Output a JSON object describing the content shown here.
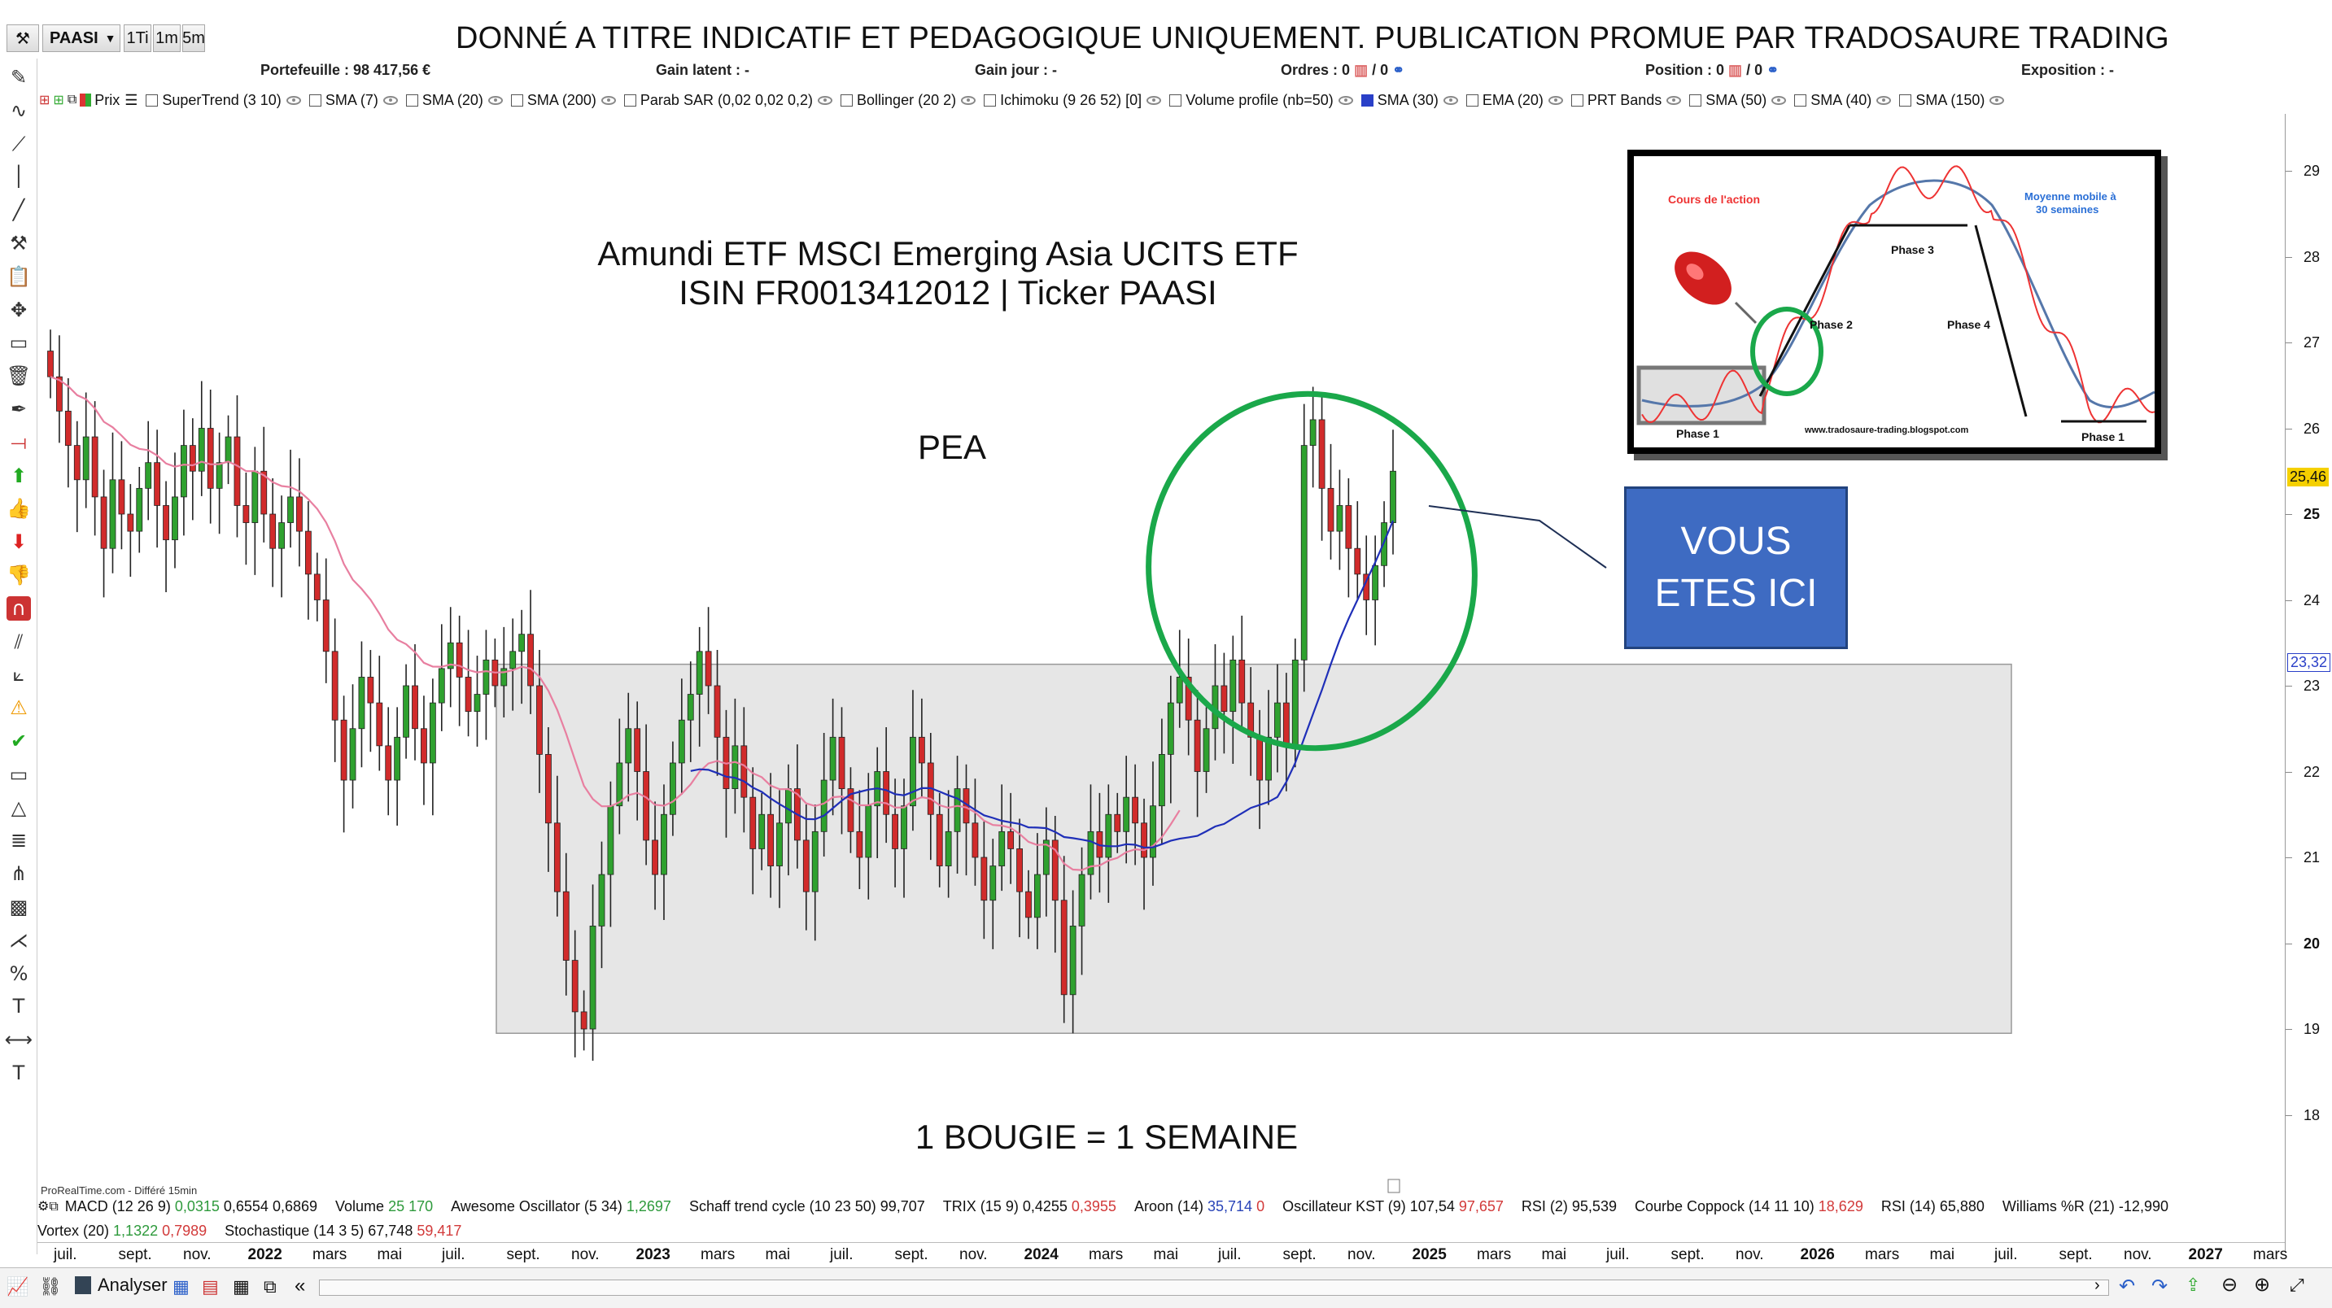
{
  "toolbar": {
    "ticker": "PAASI",
    "timeframes": [
      "1Ti",
      "1m",
      "5m"
    ],
    "banner": "DONNÉ A TITRE INDICATIF ET PEDAGOGIQUE UNIQUEMENT. PUBLICATION PROMUE PAR TRADOSAURE TRADING"
  },
  "summary": {
    "portefeuille": "Portefeuille : 98 417,56 €",
    "gain_latent": "Gain latent : -",
    "gain_jour": "Gain jour : -",
    "ordres": "Ordres : 0",
    "ordres_suffix": "/ 0",
    "position": "Position : 0",
    "position_suffix": "/ 0",
    "exposition": "Exposition : -"
  },
  "indicators": [
    "Prix",
    "SuperTrend (3 10)",
    "SMA (7)",
    "SMA (20)",
    "SMA (200)",
    "Parab SAR (0,02 0,02 0,2)",
    "Bollinger (20 2)",
    "Ichimoku (9 26 52) [0]",
    "Volume profile (nb=50)",
    "SMA (30)",
    "EMA (20)",
    "PRT Bands",
    "SMA (50)",
    "SMA (40)",
    "SMA (150)"
  ],
  "chart": {
    "title_line1": "Amundi ETF MSCI Emerging Asia UCITS ETF",
    "title_line2": "ISIN FR0013412012   |  Ticker PAASI",
    "pea": "PEA",
    "candle_note": "1 BOUGIE = 1 SEMAINE",
    "callout": [
      "VOUS",
      "ETES ICI"
    ],
    "price_tag_current": "25,46",
    "price_tag_ma": "23,32",
    "y_ticks": [
      "29",
      "28",
      "27",
      "26",
      "25",
      "24",
      "23",
      "22",
      "21",
      "20",
      "19",
      "18"
    ],
    "y_bold": [
      "25",
      "20"
    ],
    "colors": {
      "up": "#2fa12f",
      "down": "#d12b2b",
      "ma30": "#1f2fb8",
      "ema20": "#e87fa0",
      "zone": "#e6e6e6",
      "circle": "#1aa84a"
    }
  },
  "inset": {
    "cours": "Cours de l'action",
    "moyenne": "Moyenne mobile à",
    "moyenne2": "30 semaines",
    "phase1": "Phase 1",
    "phase2": "Phase 2",
    "phase3": "Phase 3",
    "phase4": "Phase 4",
    "site": "www.tradosaure-trading.blogspot.com"
  },
  "bottom": {
    "row1": [
      {
        "label": "MACD (12 26 9)",
        "vals": [
          {
            "v": "0,0315",
            "c": "g"
          },
          {
            "v": "0,6554",
            "c": ""
          },
          {
            "v": "0,6869",
            "c": ""
          }
        ]
      },
      {
        "label": "Volume",
        "vals": [
          {
            "v": "25 170",
            "c": "g"
          }
        ]
      },
      {
        "label": "Awesome Oscillator (5 34)",
        "vals": [
          {
            "v": "1,2697",
            "c": "g"
          }
        ]
      },
      {
        "label": "Schaff trend cycle (10 23 50) 99,707",
        "vals": []
      },
      {
        "label": "TRIX (15 9) 0,4255",
        "vals": [
          {
            "v": "0,3955",
            "c": "r"
          }
        ]
      },
      {
        "label": "Aroon (14)",
        "vals": [
          {
            "v": "35,714",
            "c": "b"
          },
          {
            "v": "0",
            "c": "r"
          }
        ]
      },
      {
        "label": "Oscillateur KST (9) 107,54",
        "vals": [
          {
            "v": "97,657",
            "c": "r"
          }
        ]
      },
      {
        "label": "RSI (2) 95,539",
        "vals": []
      },
      {
        "label": "Courbe Coppock (14 11 10)",
        "vals": [
          {
            "v": "18,629",
            "c": "r"
          }
        ]
      },
      {
        "label": "RSI (14) 65,880",
        "vals": []
      },
      {
        "label": "Williams %R (21) -12,990",
        "vals": []
      }
    ],
    "row2": [
      {
        "label": "Vortex (20)",
        "vals": [
          {
            "v": "1,1322",
            "c": "g"
          },
          {
            "v": "0,7989",
            "c": "r"
          }
        ]
      },
      {
        "label": "Stochastique (14 3 5) 67,748",
        "vals": [
          {
            "v": "59,417",
            "c": "r"
          }
        ]
      }
    ],
    "prt": "ProRealTime.com - Différé 15min",
    "x_ticks": [
      {
        "t": "juil.",
        "b": false
      },
      {
        "t": "sept.",
        "b": false
      },
      {
        "t": "nov.",
        "b": false
      },
      {
        "t": "2022",
        "b": true
      },
      {
        "t": "mars",
        "b": false
      },
      {
        "t": "mai",
        "b": false
      },
      {
        "t": "juil.",
        "b": false
      },
      {
        "t": "sept.",
        "b": false
      },
      {
        "t": "nov.",
        "b": false
      },
      {
        "t": "2023",
        "b": true
      },
      {
        "t": "mars",
        "b": false
      },
      {
        "t": "mai",
        "b": false
      },
      {
        "t": "juil.",
        "b": false
      },
      {
        "t": "sept.",
        "b": false
      },
      {
        "t": "nov.",
        "b": false
      },
      {
        "t": "2024",
        "b": true
      },
      {
        "t": "mars",
        "b": false
      },
      {
        "t": "mai",
        "b": false
      },
      {
        "t": "juil.",
        "b": false
      },
      {
        "t": "sept.",
        "b": false
      },
      {
        "t": "nov.",
        "b": false
      },
      {
        "t": "2025",
        "b": true
      },
      {
        "t": "mars",
        "b": false
      },
      {
        "t": "mai",
        "b": false
      },
      {
        "t": "juil.",
        "b": false
      },
      {
        "t": "sept.",
        "b": false
      },
      {
        "t": "nov.",
        "b": false
      },
      {
        "t": "2026",
        "b": true
      },
      {
        "t": "mars",
        "b": false
      },
      {
        "t": "mai",
        "b": false
      },
      {
        "t": "juil.",
        "b": false
      },
      {
        "t": "sept.",
        "b": false
      },
      {
        "t": "nov.",
        "b": false
      },
      {
        "t": "2027",
        "b": true
      },
      {
        "t": "mars",
        "b": false
      }
    ],
    "analyser": "Analyser"
  },
  "chart_data": {
    "type": "candlestick",
    "interval": "weekly",
    "y_range": [
      18,
      29.5
    ],
    "closes": [
      26.6,
      26.2,
      25.8,
      25.4,
      25.9,
      25.2,
      24.6,
      25.4,
      25.0,
      24.8,
      25.3,
      25.6,
      25.1,
      24.7,
      25.2,
      25.8,
      25.5,
      26.0,
      25.3,
      25.6,
      25.9,
      25.1,
      24.9,
      25.5,
      25.0,
      24.6,
      24.9,
      25.2,
      24.8,
      24.3,
      24.0,
      23.4,
      22.6,
      21.9,
      22.5,
      23.1,
      22.8,
      22.3,
      21.9,
      22.4,
      23.0,
      22.5,
      22.1,
      22.8,
      23.2,
      23.5,
      23.1,
      22.7,
      22.9,
      23.3,
      23.0,
      23.2,
      23.4,
      23.6,
      23.0,
      22.2,
      21.4,
      20.6,
      19.8,
      19.2,
      19.0,
      20.2,
      20.8,
      21.6,
      22.1,
      22.5,
      22.0,
      21.2,
      20.8,
      21.5,
      22.1,
      22.6,
      22.9,
      23.4,
      23.0,
      22.4,
      21.8,
      22.3,
      21.7,
      21.1,
      21.5,
      20.9,
      21.4,
      21.8,
      21.2,
      20.6,
      21.3,
      21.9,
      22.4,
      21.8,
      21.3,
      21.0,
      21.6,
      22.0,
      21.5,
      21.1,
      21.6,
      22.4,
      22.1,
      21.5,
      20.9,
      21.3,
      21.8,
      21.4,
      21.0,
      20.5,
      20.9,
      21.3,
      21.1,
      20.6,
      20.3,
      20.8,
      21.2,
      20.5,
      19.4,
      20.2,
      20.8,
      21.3,
      21.0,
      21.5,
      21.3,
      21.7,
      21.4,
      21.0,
      21.6,
      22.2,
      22.8,
      23.1,
      22.6,
      22.0,
      22.5,
      23.0,
      22.7,
      23.3,
      22.8,
      22.4,
      21.9,
      22.4,
      22.8,
      22.3,
      23.3,
      25.8,
      26.1,
      25.3,
      24.8,
      25.1,
      24.6,
      24.3,
      24.0,
      24.4,
      24.9,
      25.5
    ],
    "ma30_partial": "blue line rising from ~21.5 to 23.32",
    "ema20": "pink line declining from ~26.3 to ~21",
    "current_price": 25.46,
    "ma_value": 23.32,
    "zone_range": [
      18.95,
      23.25
    ]
  }
}
